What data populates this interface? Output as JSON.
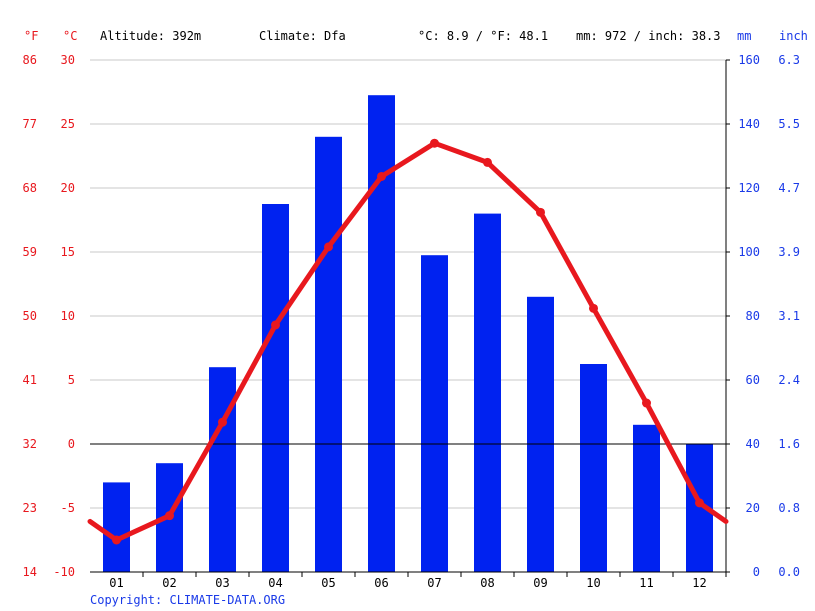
{
  "header": {
    "altitude": "Altitude: 392m",
    "climate": "Climate: Dfa",
    "temp_avg": "°C: 8.9 / °F: 48.1",
    "precip_total": "mm: 972 / inch: 38.3"
  },
  "units": {
    "f": "°F",
    "c": "°C",
    "mm": "mm",
    "inch": "inch"
  },
  "copyright": "Copyright: CLIMATE-DATA.ORG",
  "colors": {
    "temp": "#e8181e",
    "precip": "#0022f0",
    "grid": "#c8c8c8",
    "axis": "#000000",
    "right_axis": "#1a3ae8"
  },
  "chart_data": {
    "type": "bar",
    "categories": [
      "01",
      "02",
      "03",
      "04",
      "05",
      "06",
      "07",
      "08",
      "09",
      "10",
      "11",
      "12"
    ],
    "series": [
      {
        "type": "bar",
        "axis": "mm",
        "values": [
          28,
          34,
          64,
          115,
          136,
          149,
          99,
          112,
          86,
          65,
          46,
          40
        ]
      },
      {
        "type": "line",
        "axis": "°C",
        "values": [
          -7.5,
          -5.6,
          1.7,
          9.3,
          15.4,
          20.9,
          23.5,
          22.0,
          18.1,
          10.6,
          3.2,
          -4.6
        ]
      }
    ],
    "y_left_c": {
      "ylim": [
        -10,
        30
      ],
      "ticks": [
        "-10",
        "-5",
        "0",
        "5",
        "10",
        "15",
        "20",
        "25",
        "30"
      ]
    },
    "y_left_f": {
      "ticks": [
        "14",
        "23",
        "32",
        "41",
        "50",
        "59",
        "68",
        "77",
        "86"
      ]
    },
    "y_right_mm": {
      "ylim": [
        0,
        160
      ],
      "ticks": [
        "0",
        "20",
        "40",
        "60",
        "80",
        "100",
        "120",
        "140",
        "160"
      ]
    },
    "y_right_inch": {
      "ticks": [
        "0.0",
        "0.8",
        "1.6",
        "2.4",
        "3.1",
        "3.9",
        "4.7",
        "5.5",
        "6.3"
      ]
    },
    "grid": true,
    "zero_line": true
  }
}
